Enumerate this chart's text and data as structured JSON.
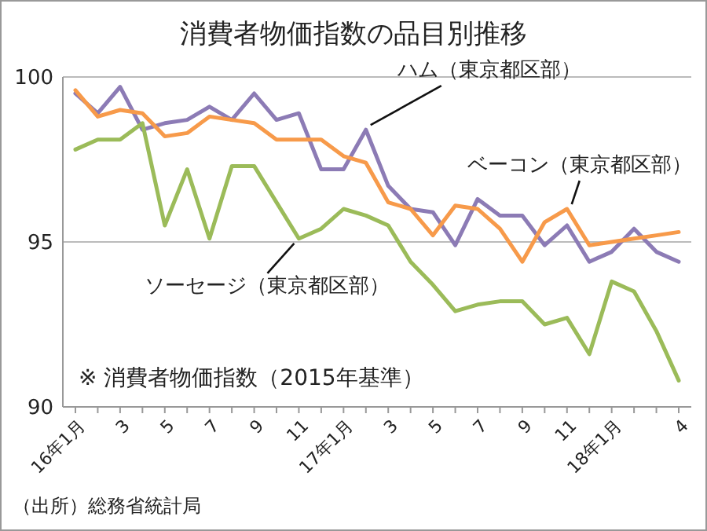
{
  "chart_data": {
    "type": "line",
    "title": "消費者物価指数の品目別推移",
    "categories": [
      "16年1月",
      null,
      "3",
      null,
      "5",
      null,
      "7",
      null,
      "9",
      null,
      "11",
      null,
      "17年1月",
      null,
      "3",
      null,
      "5",
      null,
      "7",
      null,
      "9",
      null,
      "11",
      null,
      "18年1月",
      null,
      null,
      "4"
    ],
    "series": [
      {
        "name": "ハム（東京都区部）",
        "color": "#8c7bb5",
        "values": [
          99.5,
          98.9,
          99.7,
          98.4,
          98.6,
          98.7,
          99.1,
          98.7,
          99.5,
          98.7,
          98.9,
          97.2,
          97.2,
          98.4,
          96.7,
          96.0,
          95.9,
          94.9,
          96.3,
          95.8,
          95.8,
          94.9,
          95.5,
          94.4,
          94.7,
          95.4,
          94.7,
          94.4
        ]
      },
      {
        "name": "ベーコン（東京都区部）",
        "color": "#f79a4a",
        "values": [
          99.6,
          98.8,
          99.0,
          98.9,
          98.2,
          98.3,
          98.8,
          98.7,
          98.6,
          98.1,
          98.1,
          98.1,
          97.6,
          97.4,
          96.2,
          96.0,
          95.2,
          96.1,
          96.0,
          95.4,
          94.4,
          95.6,
          96.0,
          94.9,
          95.0,
          95.1,
          95.2,
          95.3
        ]
      },
      {
        "name": "ソーセージ（東京都区部）",
        "color": "#9bbb59",
        "values": [
          97.8,
          98.1,
          98.1,
          98.6,
          95.5,
          97.2,
          95.1,
          97.3,
          97.3,
          96.2,
          95.1,
          95.4,
          96.0,
          95.8,
          95.5,
          94.4,
          93.7,
          92.9,
          93.1,
          93.2,
          93.2,
          92.5,
          92.7,
          91.6,
          93.8,
          93.5,
          92.3,
          90.8
        ]
      }
    ],
    "ylim": [
      90,
      100
    ],
    "yticks": [
      90,
      95,
      100
    ],
    "grid": "y",
    "marker": "none",
    "line_style": "solid",
    "annotations": [
      "※  消費者物価指数（2015年基準）",
      "（出所）総務省統計局"
    ]
  }
}
